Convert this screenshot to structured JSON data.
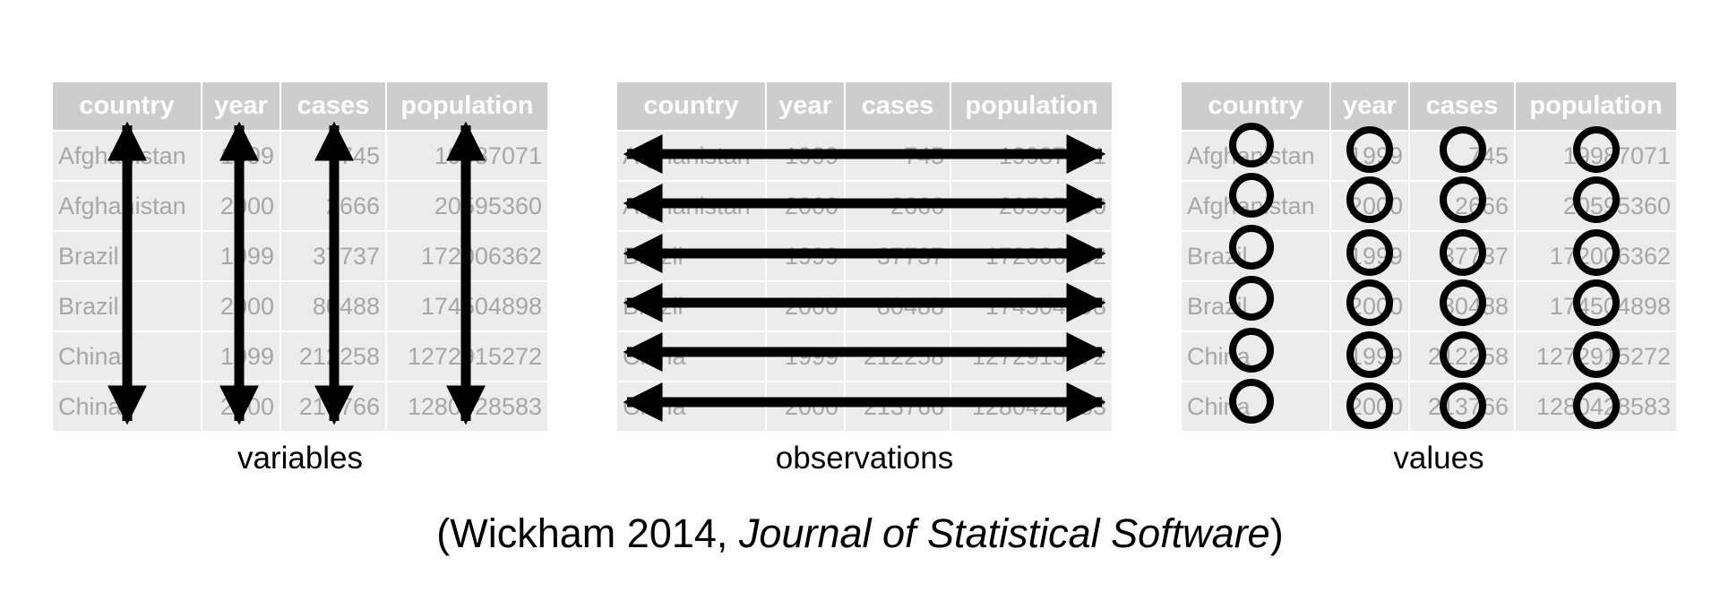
{
  "tables": [
    {
      "id": "variables",
      "label": "variables",
      "headers": [
        "country",
        "year",
        "cases",
        "population"
      ],
      "rows": [
        [
          "Afghanistan",
          "1999",
          "745",
          "19987071"
        ],
        [
          "Afghanistan",
          "2000",
          "2666",
          "20595360"
        ],
        [
          "Brazil",
          "1999",
          "37737",
          "172006362"
        ],
        [
          "Brazil",
          "2000",
          "80488",
          "174504898"
        ],
        [
          "China",
          "1999",
          "212258",
          "1272915272"
        ],
        [
          "China",
          "2000",
          "213766",
          "1280428583"
        ]
      ]
    },
    {
      "id": "observations",
      "label": "observations",
      "headers": [
        "country",
        "year",
        "cases",
        "population"
      ],
      "rows": [
        [
          "Afghanistan",
          "1999",
          "745",
          "19987071"
        ],
        [
          "Afghanistan",
          "2000",
          "2666",
          "20595360"
        ],
        [
          "Brazil",
          "1999",
          "37737",
          "172006362"
        ],
        [
          "Brazil",
          "2000",
          "80488",
          "174504898"
        ],
        [
          "China",
          "1999",
          "212258",
          "1272915272"
        ],
        [
          "China",
          "2000",
          "213766",
          "1280428583"
        ]
      ]
    },
    {
      "id": "values",
      "label": "values",
      "headers": [
        "country",
        "year",
        "cases",
        "population"
      ],
      "rows": [
        [
          "Afghanistan",
          "1999",
          "745",
          "19987071"
        ],
        [
          "Afghanistan",
          "2000",
          "2666",
          "20595360"
        ],
        [
          "Brazil",
          "1999",
          "37737",
          "172006362"
        ],
        [
          "Brazil",
          "2000",
          "80488",
          "174504898"
        ],
        [
          "China",
          "1999",
          "212258",
          "1272915272"
        ],
        [
          "China",
          "2000",
          "213766",
          "1280428583"
        ]
      ]
    }
  ],
  "citation": {
    "open": "(Wickham 2014, ",
    "journal": "Journal of Statistical Software",
    "close": ")"
  },
  "colors": {
    "header_bg": "#cdcdcd",
    "cell_bg": "#ececec",
    "cell_text": "#a7a7a7",
    "mark": "#000000"
  }
}
